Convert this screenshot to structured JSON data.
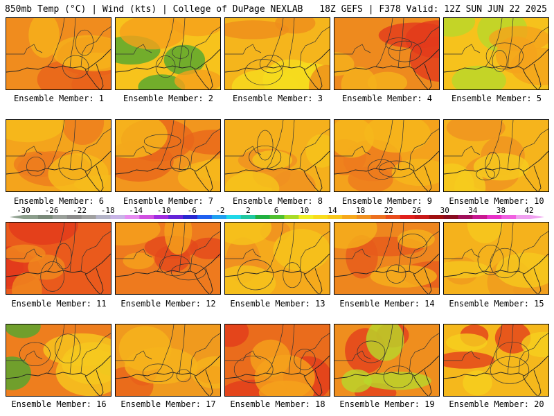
{
  "header": {
    "left": "850mb Temp (°C) | Wind (kts) | College of DuPage NEXLAB",
    "right": "18Z GEFS | F378 Valid: 12Z SUN JUN 22 2025"
  },
  "panels": [
    {
      "caption": "Ensemble Member: 1",
      "base": "#f08c1e",
      "blobs": [
        "#e8621a",
        "#f6b21a"
      ]
    },
    {
      "caption": "Ensemble Member: 2",
      "base": "#f7c31c",
      "blobs": [
        "#50a830",
        "#f5a01c"
      ]
    },
    {
      "caption": "Ensemble Member: 3",
      "base": "#f5b51c",
      "blobs": [
        "#f6dc1e",
        "#ef8d1c"
      ]
    },
    {
      "caption": "Ensemble Member: 4",
      "base": "#ee8a1e",
      "blobs": [
        "#e23a1c",
        "#f5b21c"
      ]
    },
    {
      "caption": "Ensemble Member: 5",
      "base": "#f6c21c",
      "blobs": [
        "#b8d82a",
        "#f5a21c"
      ]
    },
    {
      "caption": "Ensemble Member: 6",
      "base": "#f4a41c",
      "blobs": [
        "#ee7c1e",
        "#f6bc1c"
      ]
    },
    {
      "caption": "Ensemble Member: 7",
      "base": "#f2961e",
      "blobs": [
        "#e8661a",
        "#f6b81c"
      ]
    },
    {
      "caption": "Ensemble Member: 8",
      "base": "#f5b01c",
      "blobs": [
        "#f09020",
        "#f6c41c"
      ]
    },
    {
      "caption": "Ensemble Member: 9",
      "base": "#f4a21c",
      "blobs": [
        "#ee7a1e",
        "#f6b81c"
      ]
    },
    {
      "caption": "Ensemble Member: 10",
      "base": "#f6b41c",
      "blobs": [
        "#f09220",
        "#f6cc1e"
      ]
    },
    {
      "caption": "Ensemble Member: 11",
      "base": "#ea5a1c",
      "blobs": [
        "#e23a1c",
        "#f08a1e"
      ]
    },
    {
      "caption": "Ensemble Member: 12",
      "base": "#ee7a1e",
      "blobs": [
        "#e4481c",
        "#f5a21c"
      ]
    },
    {
      "caption": "Ensemble Member: 13",
      "base": "#f5aa1c",
      "blobs": [
        "#f09020",
        "#f6c41c"
      ]
    },
    {
      "caption": "Ensemble Member: 14",
      "base": "#ee861e",
      "blobs": [
        "#e65a1c",
        "#f5b01c"
      ]
    },
    {
      "caption": "Ensemble Member: 15",
      "base": "#f5b21c",
      "blobs": [
        "#f09a1e",
        "#f6c81e"
      ]
    },
    {
      "caption": "Ensemble Member: 16",
      "base": "#ee7e1e",
      "blobs": [
        "#50a830",
        "#f6c81e"
      ]
    },
    {
      "caption": "Ensemble Member: 17",
      "base": "#f09a1e",
      "blobs": [
        "#e8601a",
        "#f6b41c"
      ]
    },
    {
      "caption": "Ensemble Member: 18",
      "base": "#ea6c1c",
      "blobs": [
        "#e23c1c",
        "#f5a21c"
      ]
    },
    {
      "caption": "Ensemble Member: 19",
      "base": "#ef8e1e",
      "blobs": [
        "#e4401c",
        "#b8d82a"
      ]
    },
    {
      "caption": "Ensemble Member: 20",
      "base": "#f5b81c",
      "blobs": [
        "#e4401c",
        "#f6d01e"
      ]
    }
  ],
  "colorbar": {
    "labels": [
      "-30",
      "-26",
      "-22",
      "-18",
      "-14",
      "-10",
      "-6",
      "-2",
      "2",
      "6",
      "10",
      "14",
      "18",
      "22",
      "26",
      "30",
      "34",
      "38",
      "42"
    ],
    "colors": [
      "#8c9e8c",
      "#7a8a7a",
      "#9aa09a",
      "#8c8c8c",
      "#a0a0a0",
      "#b4b4c8",
      "#c8b4e6",
      "#e68cf0",
      "#d050e0",
      "#a02ce0",
      "#6424d8",
      "#2828d0",
      "#2060f0",
      "#20a0f0",
      "#20d8e8",
      "#20c8a0",
      "#20b040",
      "#50c030",
      "#a8dc28",
      "#f0f028",
      "#f8dc1e",
      "#f8c81c",
      "#f6a81c",
      "#f09020",
      "#ec7020",
      "#e84c1c",
      "#e0201c",
      "#c81818",
      "#a01010",
      "#880c20",
      "#a0105a",
      "#c81890",
      "#e830c8",
      "#f060e0",
      "#f0a0f0"
    ]
  }
}
